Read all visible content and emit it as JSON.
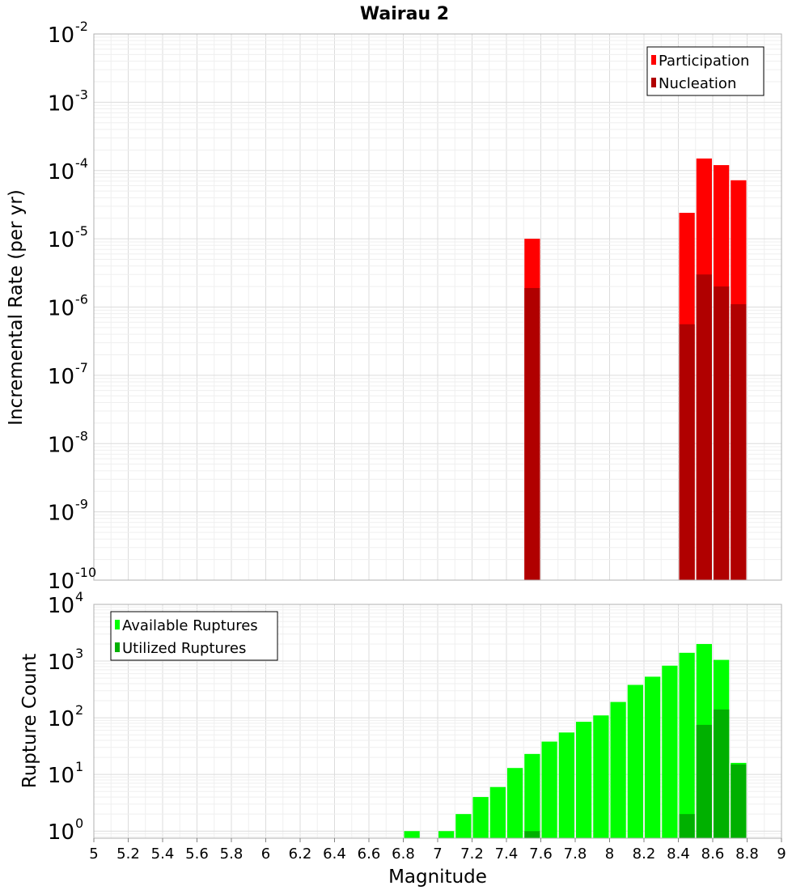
{
  "title": "Wairau 2",
  "chart_data": [
    {
      "type": "bar",
      "panel": "top",
      "ylabel": "Incremental Rate (per yr)",
      "yscale": "log",
      "ylim": [
        1e-10,
        0.01
      ],
      "ytick_labels": [
        {
          "base": "10",
          "exp": "-10"
        },
        {
          "base": "10",
          "exp": "-9"
        },
        {
          "base": "10",
          "exp": "-8"
        },
        {
          "base": "10",
          "exp": "-7"
        },
        {
          "base": "10",
          "exp": "-6"
        },
        {
          "base": "10",
          "exp": "-5"
        },
        {
          "base": "10",
          "exp": "-4"
        },
        {
          "base": "10",
          "exp": "-3"
        },
        {
          "base": "10",
          "exp": "-2"
        }
      ],
      "legend_position": "top-right",
      "grid": true,
      "series": [
        {
          "name": "Participation",
          "color": "#ff0000",
          "points": [
            {
              "x": 7.55,
              "y": 1e-05
            },
            {
              "x": 8.45,
              "y": 2.4e-05
            },
            {
              "x": 8.55,
              "y": 0.00015
            },
            {
              "x": 8.65,
              "y": 0.00012
            },
            {
              "x": 8.75,
              "y": 7.2e-05
            }
          ]
        },
        {
          "name": "Nucleation",
          "color": "#b00000",
          "points": [
            {
              "x": 7.55,
              "y": 1.9e-06
            },
            {
              "x": 8.45,
              "y": 5.6e-07
            },
            {
              "x": 8.55,
              "y": 3e-06
            },
            {
              "x": 8.65,
              "y": 2e-06
            },
            {
              "x": 8.75,
              "y": 1.1e-06
            }
          ]
        }
      ]
    },
    {
      "type": "bar",
      "panel": "bottom",
      "ylabel": "Rupture Count",
      "xlabel": "Magnitude",
      "yscale": "log",
      "ylim": [
        0.75,
        10000
      ],
      "xlim": [
        5,
        9
      ],
      "ytick_labels": [
        {
          "base": "10",
          "exp": "0"
        },
        {
          "base": "10",
          "exp": "1"
        },
        {
          "base": "10",
          "exp": "2"
        },
        {
          "base": "10",
          "exp": "3"
        },
        {
          "base": "10",
          "exp": "4"
        }
      ],
      "xtick_labels": [
        "5",
        "5.2",
        "5.4",
        "5.6",
        "5.8",
        "6",
        "6.2",
        "6.4",
        "6.6",
        "6.8",
        "7",
        "7.2",
        "7.4",
        "7.6",
        "7.8",
        "8",
        "8.2",
        "8.4",
        "8.6",
        "8.8",
        "9"
      ],
      "legend_position": "top-left",
      "grid": true,
      "series": [
        {
          "name": "Available Ruptures",
          "color": "#00ff00",
          "points": [
            {
              "x": 6.85,
              "y": 1
            },
            {
              "x": 7.05,
              "y": 1
            },
            {
              "x": 7.15,
              "y": 2
            },
            {
              "x": 7.25,
              "y": 4
            },
            {
              "x": 7.35,
              "y": 6
            },
            {
              "x": 7.45,
              "y": 13
            },
            {
              "x": 7.55,
              "y": 23
            },
            {
              "x": 7.65,
              "y": 38
            },
            {
              "x": 7.75,
              "y": 55
            },
            {
              "x": 7.85,
              "y": 85
            },
            {
              "x": 7.95,
              "y": 110
            },
            {
              "x": 8.05,
              "y": 190
            },
            {
              "x": 8.15,
              "y": 380
            },
            {
              "x": 8.25,
              "y": 530
            },
            {
              "x": 8.35,
              "y": 830
            },
            {
              "x": 8.45,
              "y": 1400
            },
            {
              "x": 8.55,
              "y": 2000
            },
            {
              "x": 8.65,
              "y": 1050
            },
            {
              "x": 8.75,
              "y": 16
            }
          ]
        },
        {
          "name": "Utilized Ruptures",
          "color": "#00b000",
          "points": [
            {
              "x": 7.55,
              "y": 1
            },
            {
              "x": 8.45,
              "y": 2
            },
            {
              "x": 8.55,
              "y": 75
            },
            {
              "x": 8.65,
              "y": 140
            },
            {
              "x": 8.75,
              "y": 15
            }
          ]
        }
      ]
    }
  ]
}
